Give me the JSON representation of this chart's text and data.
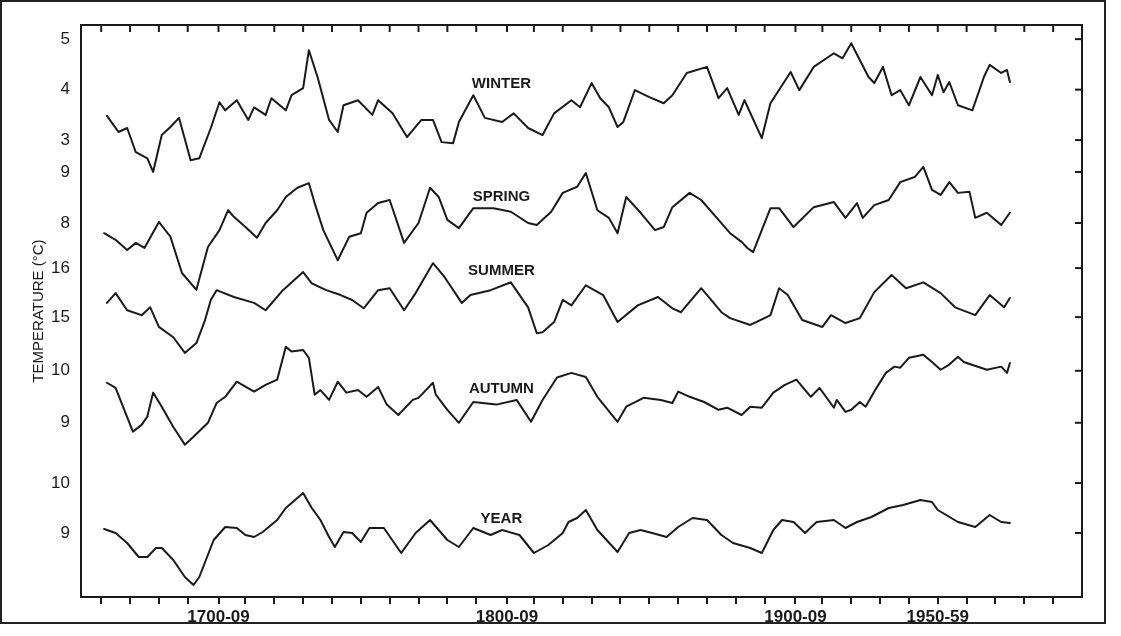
{
  "chart_data": [
    {
      "type": "line",
      "x": [
        "1662",
        "1666",
        "1669",
        "1672",
        "1676",
        "1678",
        "1681",
        "1684",
        "1687",
        "1691",
        "1694",
        "1698",
        "1701",
        "1703",
        "1707",
        "1711",
        "1713",
        "1717",
        "1719",
        "1724",
        "1726",
        "1730",
        "1732",
        "1735",
        "1739",
        "1742",
        "1744",
        "1749",
        "1754",
        "1756",
        "1761",
        "1766",
        "1771",
        "1775",
        "1778",
        "1782",
        "1784",
        "1789",
        "1793",
        "1799",
        "1803",
        "1808",
        "1813",
        "1817",
        "1823",
        "1826",
        "1830",
        "1833",
        "1836",
        "1839",
        "1841",
        "1845",
        "1850",
        "1855",
        "1858",
        "1863",
        "1870",
        "1874",
        "1877",
        "1881",
        "1883",
        "1889",
        "1892",
        "1899",
        "1902",
        "1907",
        "1914",
        "1917",
        "1920",
        "1926",
        "1928",
        "1931",
        "1934",
        "1937",
        "1940",
        "1944",
        "1948",
        "1950",
        "1952",
        "1954",
        "1957",
        "1962",
        "1966",
        "1968",
        "1972",
        "1974",
        "1975"
      ],
      "series": [
        {
          "name": "WINTER",
          "color": "#1a1a1a",
          "values": [
            3.48,
            3.16,
            3.24,
            2.76,
            2.64,
            2.37,
            3.1,
            3.26,
            3.44,
            2.6,
            2.64,
            3.24,
            3.75,
            3.59,
            3.79,
            3.4,
            3.65,
            3.5,
            3.83,
            3.59,
            3.89,
            4.03,
            4.78,
            4.25,
            3.4,
            3.16,
            3.69,
            3.79,
            3.5,
            3.79,
            3.53,
            3.06,
            3.4,
            3.4,
            2.96,
            2.94,
            3.36,
            3.89,
            3.44,
            3.36,
            3.53,
            3.24,
            3.1,
            3.53,
            3.79,
            3.65,
            4.13,
            3.83,
            3.65,
            3.26,
            3.36,
            3.99,
            3.85,
            3.73,
            3.89,
            4.33,
            4.45,
            3.83,
            4.03,
            3.5,
            3.79,
            3.04,
            3.73,
            4.35,
            3.99,
            4.45,
            4.72,
            4.62,
            4.92,
            4.25,
            4.13,
            4.45,
            3.89,
            3.99,
            3.69,
            4.25,
            3.89,
            4.29,
            3.95,
            4.15,
            3.69,
            3.59,
            4.25,
            4.49,
            4.33,
            4.39,
            4.15
          ]
        }
      ],
      "xlim": [
        "1653",
        "2000"
      ],
      "ylim": [
        -6.05,
        5.28
      ],
      "yticks": [
        3,
        4,
        5
      ],
      "tick_labels": "y"
    },
    {
      "type": "line",
      "x": [
        "1661",
        "1665",
        "1669",
        "1672",
        "1675",
        "1680",
        "1684",
        "1688",
        "1693",
        "1697",
        "1701",
        "1704",
        "1706",
        "1710",
        "1714",
        "1717",
        "1721",
        "1724",
        "1728",
        "1732",
        "1734",
        "1737",
        "1742",
        "1746",
        "1750",
        "1752",
        "1756",
        "1760",
        "1765",
        "1770",
        "1774",
        "1777",
        "1780",
        "1784",
        "1789",
        "1796",
        "1802",
        "1808",
        "1811",
        "1816",
        "1820",
        "1825",
        "1828",
        "1832",
        "1836",
        "1839",
        "1842",
        "1847",
        "1852",
        "1855",
        "1858",
        "1864",
        "1868",
        "1874",
        "1878",
        "1882",
        "1884",
        "1886",
        "1892",
        "1895",
        "1900",
        "1907",
        "1914",
        "1918",
        "1922",
        "1924",
        "1928",
        "1933",
        "1937",
        "1942",
        "1945",
        "1948",
        "1951",
        "1954",
        "1957",
        "1961",
        "1963",
        "1967",
        "1972",
        "1975"
      ],
      "series": [
        {
          "name": "SPRING",
          "color": "#1a1a1a",
          "values": [
            7.8,
            7.67,
            7.47,
            7.61,
            7.51,
            8.02,
            7.73,
            7.02,
            6.69,
            7.53,
            7.86,
            8.25,
            8.12,
            7.92,
            7.71,
            8.0,
            8.25,
            8.51,
            8.69,
            8.78,
            8.39,
            7.86,
            7.27,
            7.73,
            7.8,
            8.2,
            8.39,
            8.45,
            7.61,
            8.0,
            8.69,
            8.51,
            8.06,
            7.9,
            8.29,
            8.29,
            8.22,
            8.0,
            7.96,
            8.22,
            8.59,
            8.71,
            8.98,
            8.25,
            8.1,
            7.8,
            8.51,
            8.2,
            7.86,
            7.92,
            8.31,
            8.59,
            8.45,
            8.06,
            7.8,
            7.63,
            7.51,
            7.43,
            8.29,
            8.29,
            7.92,
            8.31,
            8.41,
            8.1,
            8.39,
            8.1,
            8.35,
            8.45,
            8.8,
            8.9,
            9.1,
            8.65,
            8.55,
            8.8,
            8.59,
            8.61,
            8.1,
            8.2,
            7.96,
            8.2
          ]
        }
      ],
      "xlim": [
        "1653",
        "2000"
      ],
      "ylim": [
        0.67,
        11.88
      ],
      "yticks": [
        8,
        9
      ],
      "tick_labels": "y"
    },
    {
      "type": "line",
      "x": [
        "1662",
        "1665",
        "1669",
        "1674",
        "1677",
        "1680",
        "1685",
        "1689",
        "1693",
        "1696",
        "1698",
        "1700",
        "1706",
        "1713",
        "1717",
        "1723",
        "1730",
        "1733",
        "1738",
        "1743",
        "1747",
        "1751",
        "1756",
        "1760",
        "1765",
        "1769",
        "1775",
        "1779",
        "1785",
        "1788",
        "1795",
        "1802",
        "1808",
        "1811",
        "1813",
        "1817",
        "1820",
        "1823",
        "1828",
        "1834",
        "1839",
        "1846",
        "1853",
        "1858",
        "1861",
        "1868",
        "1875",
        "1878",
        "1885",
        "1892",
        "1895",
        "1898",
        "1903",
        "1910",
        "1913",
        "1918",
        "1923",
        "1928",
        "1934",
        "1939",
        "1945",
        "1951",
        "1956",
        "1963",
        "1968",
        "1973",
        "1975"
      ],
      "series": [
        {
          "name": "SUMMER",
          "color": "#1a1a1a",
          "values": [
            15.29,
            15.49,
            15.14,
            15.04,
            15.2,
            14.8,
            14.59,
            14.27,
            14.47,
            14.94,
            15.35,
            15.55,
            15.41,
            15.29,
            15.14,
            15.55,
            15.92,
            15.69,
            15.55,
            15.45,
            15.35,
            15.18,
            15.55,
            15.59,
            15.14,
            15.49,
            16.1,
            15.82,
            15.29,
            15.45,
            15.55,
            15.71,
            15.2,
            14.67,
            14.69,
            14.9,
            15.35,
            15.24,
            15.65,
            15.45,
            14.9,
            15.24,
            15.41,
            15.18,
            15.1,
            15.59,
            15.1,
            14.98,
            14.84,
            15.04,
            15.59,
            15.45,
            14.94,
            14.8,
            15.04,
            14.88,
            14.98,
            15.51,
            15.86,
            15.59,
            15.71,
            15.49,
            15.2,
            15.04,
            15.45,
            15.2,
            15.39
          ]
        }
      ],
      "xlim": [
        "1653",
        "2000"
      ],
      "ylim": [
        9.29,
        20.96
      ],
      "yticks": [
        15,
        16
      ],
      "ylabel": "TEMPERATURE (°C)",
      "tick_labels": "y"
    },
    {
      "type": "line",
      "x": [
        "1662",
        "1665",
        "1668",
        "1671",
        "1674",
        "1676",
        "1678",
        "1681",
        "1685",
        "1689",
        "1692",
        "1697",
        "1700",
        "1703",
        "1707",
        "1713",
        "1717",
        "1721",
        "1724",
        "1726",
        "1730",
        "1732",
        "1734",
        "1736",
        "1739",
        "1742",
        "1745",
        "1749",
        "1752",
        "1756",
        "1759",
        "1763",
        "1768",
        "1770",
        "1775",
        "1776",
        "1780",
        "1784",
        "1789",
        "1797",
        "1804",
        "1809",
        "1813",
        "1818",
        "1823",
        "1828",
        "1832",
        "1839",
        "1842",
        "1848",
        "1854",
        "1858",
        "1860",
        "1864",
        "1869",
        "1874",
        "1877",
        "1882",
        "1885",
        "1889",
        "1893",
        "1897",
        "1901",
        "1906",
        "1909",
        "1914",
        "1915",
        "1918",
        "1920",
        "1923",
        "1925",
        "1928",
        "1932",
        "1935",
        "1937",
        "1940",
        "1945",
        "1948",
        "1951",
        "1954",
        "1957",
        "1959",
        "1967",
        "1972",
        "1974",
        "1975"
      ],
      "series": [
        {
          "name": "AUTUMN",
          "color": "#1a1a1a",
          "values": [
            9.77,
            9.67,
            9.25,
            8.83,
            8.96,
            9.12,
            9.58,
            9.31,
            8.92,
            8.58,
            8.73,
            9.0,
            9.38,
            9.5,
            9.79,
            9.6,
            9.73,
            9.83,
            10.46,
            10.37,
            10.4,
            10.25,
            9.54,
            9.63,
            9.44,
            9.79,
            9.58,
            9.63,
            9.5,
            9.69,
            9.35,
            9.15,
            9.44,
            9.48,
            9.77,
            9.54,
            9.25,
            9.0,
            9.4,
            9.35,
            9.44,
            9.02,
            9.44,
            9.87,
            9.96,
            9.88,
            9.5,
            9.02,
            9.31,
            9.48,
            9.44,
            9.38,
            9.6,
            9.5,
            9.4,
            9.25,
            9.29,
            9.15,
            9.31,
            9.29,
            9.58,
            9.73,
            9.83,
            9.5,
            9.67,
            9.29,
            9.44,
            9.21,
            9.25,
            9.4,
            9.31,
            9.6,
            9.96,
            10.08,
            10.06,
            10.25,
            10.31,
            10.17,
            10.02,
            10.12,
            10.27,
            10.17,
            10.02,
            10.08,
            9.96,
            10.15
          ]
        }
      ],
      "xlim": [
        "1653",
        "2000"
      ],
      "ylim": [
        5.65,
        16.65
      ],
      "yticks": [
        9,
        10
      ],
      "tick_labels": "y"
    },
    {
      "type": "line",
      "x": [
        "1661",
        "1665",
        "1669",
        "1673",
        "1676",
        "1679",
        "1681",
        "1685",
        "1689",
        "1692",
        "1694",
        "1699",
        "1703",
        "1707",
        "1710",
        "1713",
        "1716",
        "1721",
        "1724",
        "1730",
        "1733",
        "1736",
        "1739",
        "1741",
        "1744",
        "1747",
        "1750",
        "1753",
        "1758",
        "1764",
        "1769",
        "1774",
        "1780",
        "1784",
        "1789",
        "1795",
        "1799",
        "1805",
        "1810",
        "1815",
        "1820",
        "1822",
        "1825",
        "1828",
        "1832",
        "1839",
        "1843",
        "1847",
        "1851",
        "1856",
        "1860",
        "1865",
        "1870",
        "1875",
        "1879",
        "1885",
        "1889",
        "1893",
        "1896",
        "1900",
        "1904",
        "1908",
        "1914",
        "1918",
        "1922",
        "1927",
        "1933",
        "1938",
        "1944",
        "1948",
        "1950",
        "1957",
        "1963",
        "1968",
        "1972",
        "1975"
      ],
      "series": [
        {
          "name": "YEAR",
          "color": "#1a1a1a",
          "values": [
            9.08,
            9.0,
            8.8,
            8.52,
            8.52,
            8.7,
            8.7,
            8.46,
            8.12,
            7.96,
            8.12,
            8.86,
            9.12,
            9.1,
            8.96,
            8.92,
            9.02,
            9.26,
            9.5,
            9.8,
            9.5,
            9.26,
            8.92,
            8.72,
            9.02,
            9.0,
            8.82,
            9.1,
            9.1,
            8.6,
            9.0,
            9.26,
            8.86,
            8.72,
            9.1,
            8.96,
            9.06,
            8.96,
            8.6,
            8.76,
            9.0,
            9.22,
            9.3,
            9.46,
            9.06,
            8.62,
            9.0,
            9.06,
            9.0,
            8.92,
            9.12,
            9.3,
            9.26,
            8.96,
            8.8,
            8.7,
            8.6,
            9.06,
            9.26,
            9.22,
            9.0,
            9.22,
            9.26,
            9.1,
            9.22,
            9.32,
            9.5,
            9.56,
            9.66,
            9.62,
            9.46,
            9.22,
            9.12,
            9.36,
            9.22,
            9.2
          ]
        }
      ],
      "xlim": [
        "1653",
        "2000"
      ],
      "xticks": [
        {
          "value": "1660",
          "label": null
        },
        {
          "value": "1670",
          "label": null
        },
        {
          "value": "1680",
          "label": null
        },
        {
          "value": "1690",
          "label": null
        },
        "1700-09",
        {
          "value": "1710",
          "label": null
        },
        {
          "value": "1720",
          "label": null
        },
        {
          "value": "1730",
          "label": null
        },
        {
          "value": "1740",
          "label": null
        },
        {
          "value": "1750",
          "label": null
        },
        {
          "value": "1760",
          "label": null
        },
        {
          "value": "1770",
          "label": null
        },
        {
          "value": "1780",
          "label": null
        },
        {
          "value": "1790",
          "label": null
        },
        "1800-09",
        {
          "value": "1810",
          "label": null
        },
        {
          "value": "1820",
          "label": null
        },
        {
          "value": "1830",
          "label": null
        },
        {
          "value": "1840",
          "label": null
        },
        {
          "value": "1850",
          "label": null
        },
        {
          "value": "1860",
          "label": null
        },
        {
          "value": "1870",
          "label": null
        },
        {
          "value": "1880",
          "label": null
        },
        {
          "value": "1890",
          "label": null
        },
        "1900-09",
        {
          "value": "1910",
          "label": null
        },
        {
          "value": "1920",
          "label": null
        },
        {
          "value": "1930",
          "label": null
        },
        {
          "value": "1940",
          "label": null
        },
        {
          "value": "1950",
          "label": "1950-59"
        },
        {
          "value": "1960",
          "label": null
        },
        {
          "value": "1970",
          "label": null
        },
        {
          "value": "1980",
          "label": null
        },
        {
          "value": "1990",
          "label": null
        }
      ],
      "ylim": [
        7.72,
        19.16
      ],
      "yticks": [
        9,
        10
      ]
    }
  ]
}
